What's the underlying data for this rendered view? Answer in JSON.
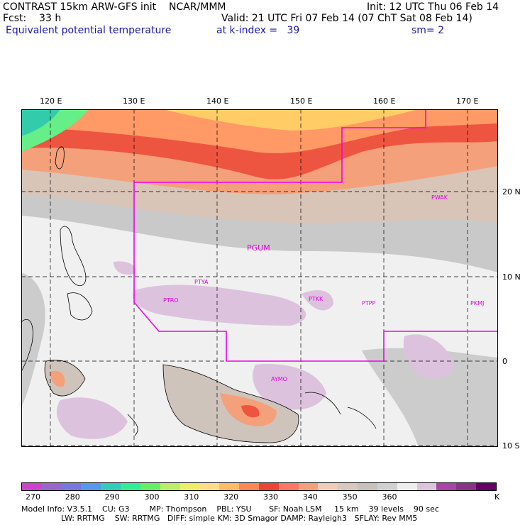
{
  "header": {
    "line1_left": "CONTRAST 15km ARW-GFS init    NCAR/MMM",
    "line1_right": "Init: 12 UTC Thu 06 Feb 14",
    "line2_left": "Fcst:    33 h",
    "line2_right": "Valid: 21 UTC Fri 07 Feb 14 (07 ChT Sat 08 Feb 14)",
    "line3_left": "Equivalent potential temperature",
    "line3_mid": "at k-index =   39",
    "line3_right": "sm= 2"
  },
  "map": {
    "lon_labels": [
      "120 E",
      "130 E",
      "140 E",
      "150 E",
      "160 E",
      "170 E"
    ],
    "lat_labels": [
      "20 N",
      "10 N",
      "0",
      "10 S"
    ],
    "stations": [
      {
        "name": "PWAK"
      },
      {
        "name": "PGUM"
      },
      {
        "name": "PTYA"
      },
      {
        "name": "PTRO"
      },
      {
        "name": "PTKK"
      },
      {
        "name": "PTPP"
      },
      {
        "name": "PKMJ"
      },
      {
        "name": "AYMO"
      }
    ],
    "colors": {
      "background": "#f0f0f0",
      "t270": "#cc44cc",
      "t300": "#33dd99",
      "t320": "#ffcc66",
      "t330": "#ee4433",
      "t340": "#f4a07a",
      "t350": "#c8b8b0",
      "t360": "#cccccc",
      "t365": "#ddc2dd",
      "boundary": "#ee00ee"
    }
  },
  "colorbar": {
    "colors": [
      "#cc44cc",
      "#9966cc",
      "#7777dd",
      "#5599ee",
      "#33ccbb",
      "#33ee99",
      "#66ee66",
      "#bbee66",
      "#eeee66",
      "#ffdd88",
      "#ffbb66",
      "#ff8855",
      "#ee4433",
      "#ff7766",
      "#f4a07a",
      "#eeccb8",
      "#d8c8c0",
      "#c8c0bc",
      "#d0d0d0",
      "#eeeeee",
      "#dcc4dc",
      "#aa44aa",
      "#883388",
      "#660066"
    ],
    "labels": [
      "270",
      "280",
      "290",
      "300",
      "310",
      "320",
      "330",
      "340",
      "350",
      "360"
    ],
    "unit": "K"
  },
  "model_info": {
    "line1": "Model Info: V3.5.1    CU: G3        MP: Thompson    PBL: YSU       SF: Noah LSM     15 km    39 levels    90 sec",
    "line2": "                LW: RRTMG    SW: RRTMG   DIFF: simple KM: 3D Smagor DAMP: Rayleigh3   SFLAY: Rev MM5"
  }
}
